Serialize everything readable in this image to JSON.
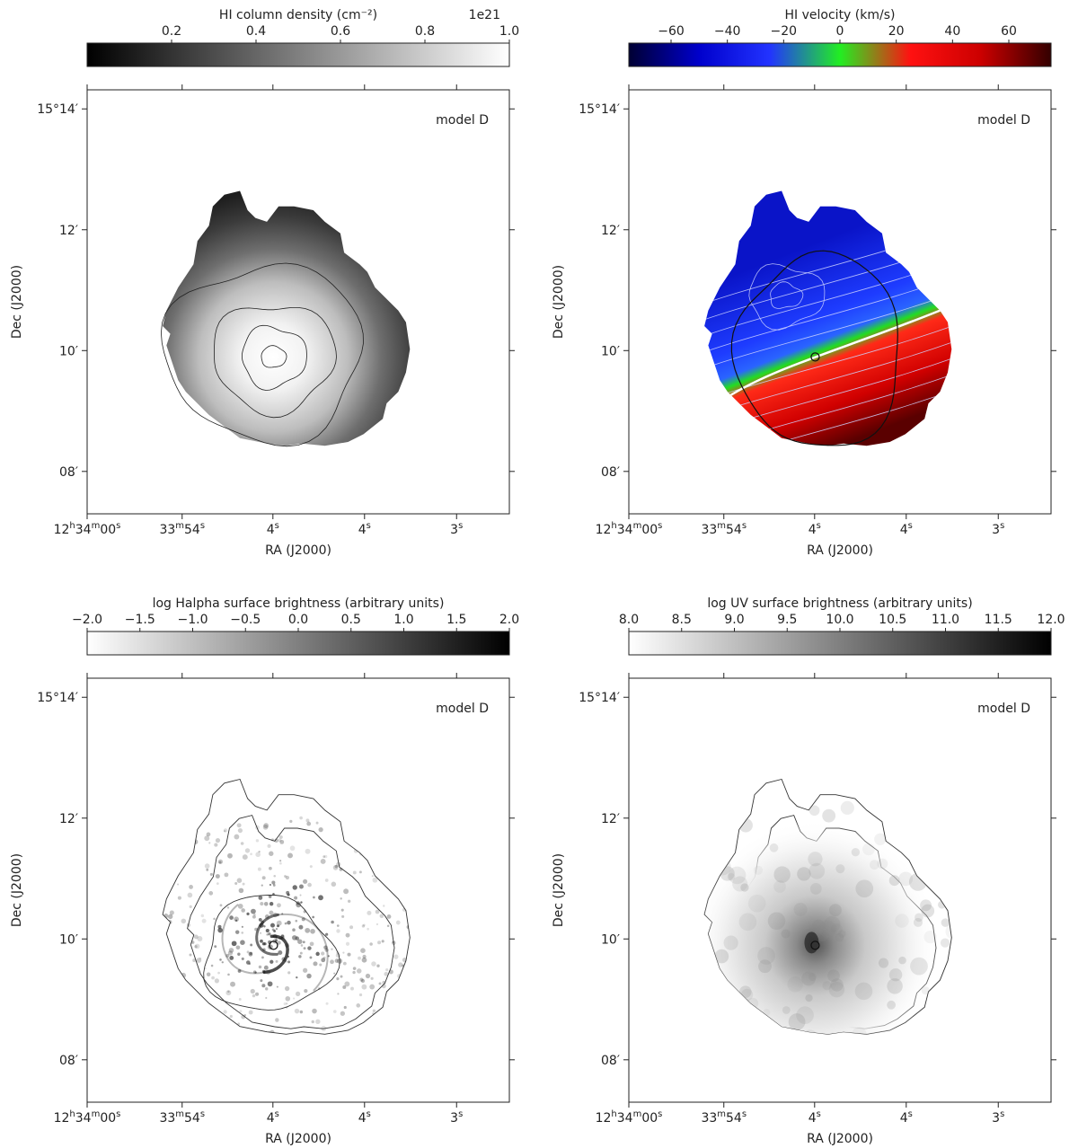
{
  "chart_data": [
    {
      "type": "heatmap",
      "panel": "top-left",
      "colorbar": {
        "label": "HI column density (cm⁻²)",
        "offset_text": "1e21",
        "cmap": "gray",
        "range": [
          0.0,
          1.0
        ],
        "ticks": [
          0.2,
          0.4,
          0.6,
          0.8,
          1.0
        ],
        "tick_labels": [
          "0.2",
          "0.4",
          "0.6",
          "0.8",
          "1.0"
        ],
        "colors": [
          "#000000",
          "#ffffff"
        ]
      },
      "annotation": "model D",
      "xlabel": "RA (J2000)",
      "ylabel": "Dec (J2000)",
      "xticks": [
        "12h34m00s",
        "33m54s",
        "48s",
        "42s",
        "36s"
      ],
      "yticks": [
        "15°14′",
        "12′",
        "10′",
        "08′"
      ],
      "contours": "column density levels around the peak",
      "peak_value": 1.0
    },
    {
      "type": "heatmap",
      "panel": "top-right",
      "colorbar": {
        "label": "HI velocity (km/s)",
        "cmap": "blue-green-red diverging",
        "range": [
          -75,
          75
        ],
        "ticks": [
          -60,
          -40,
          -20,
          0,
          20,
          40,
          60
        ],
        "tick_labels": [
          "−60",
          "−40",
          "−20",
          "0",
          "20",
          "40",
          "60"
        ],
        "colors": [
          "#000033",
          "#0000cc",
          "#2233ff",
          "#22ee22",
          "#ff1111",
          "#cc0000",
          "#330000"
        ]
      },
      "annotation": "model D",
      "xlabel": "RA (J2000)",
      "ylabel": "Dec (J2000)",
      "xticks": [
        "12h34m00s",
        "33m54s",
        "48s",
        "42s",
        "36s"
      ],
      "yticks": [
        "15°14′",
        "12′",
        "10′",
        "08′"
      ],
      "velocity_range": [
        -60,
        60
      ]
    },
    {
      "type": "heatmap",
      "panel": "bottom-left",
      "colorbar": {
        "label": "log Halpha surface brightness (arbitrary units)",
        "cmap": "gray_r",
        "range": [
          -2.0,
          2.0
        ],
        "ticks": [
          -2.0,
          -1.5,
          -1.0,
          -0.5,
          0.0,
          0.5,
          1.0,
          1.5,
          2.0
        ],
        "tick_labels": [
          "−2.0",
          "−1.5",
          "−1.0",
          "−0.5",
          "0.0",
          "0.5",
          "1.0",
          "1.5",
          "2.0"
        ],
        "colors": [
          "#ffffff",
          "#000000"
        ]
      },
      "annotation": "model D",
      "xlabel": "RA (J2000)",
      "ylabel": "Dec (J2000)",
      "xticks": [
        "12h34m00s",
        "33m54s",
        "48s",
        "42s",
        "36s"
      ],
      "yticks": [
        "15°14′",
        "12′",
        "10′",
        "08′"
      ]
    },
    {
      "type": "heatmap",
      "panel": "bottom-right",
      "colorbar": {
        "label": "log UV surface brightness (arbitrary units)",
        "cmap": "gray_r",
        "range": [
          8.0,
          12.0
        ],
        "ticks": [
          8.0,
          8.5,
          9.0,
          9.5,
          10.0,
          10.5,
          11.0,
          11.5,
          12.0
        ],
        "tick_labels": [
          "8.0",
          "8.5",
          "9.0",
          "9.5",
          "10.0",
          "10.5",
          "11.0",
          "11.5",
          "12.0"
        ],
        "colors": [
          "#ffffff",
          "#000000"
        ]
      },
      "annotation": "model D",
      "xlabel": "RA (J2000)",
      "ylabel": "Dec (J2000)",
      "xticks": [
        "12h34m00s",
        "33m54s",
        "48s",
        "42s",
        "36s"
      ],
      "yticks": [
        "15°14′",
        "12′",
        "10′",
        "08′"
      ]
    }
  ]
}
